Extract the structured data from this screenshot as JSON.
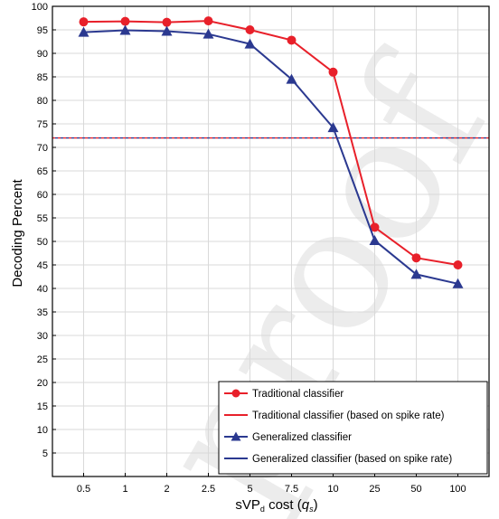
{
  "chart_data": {
    "type": "line",
    "xlabel_parts": {
      "base": "sVP",
      "sub": "d",
      "mid": " cost (",
      "q": "q",
      "qsub": "s",
      "end": ")"
    },
    "ylabel": "Decoding Percent",
    "categories": [
      "0.5",
      "1",
      "2",
      "2.5",
      "5",
      "7.5",
      "10",
      "25",
      "50",
      "100"
    ],
    "ylim": [
      0,
      100
    ],
    "yticks": [
      5,
      10,
      15,
      20,
      25,
      30,
      35,
      40,
      45,
      50,
      55,
      60,
      65,
      70,
      75,
      80,
      85,
      90,
      95,
      100
    ],
    "grid": true,
    "legend_position": "bottom-right",
    "series": [
      {
        "name": "Traditional classifier",
        "marker": "circle",
        "color": "#e8202a",
        "values": [
          96.7,
          96.8,
          96.6,
          96.9,
          95.0,
          92.8,
          86.0,
          53.0,
          46.5,
          45.0
        ]
      },
      {
        "name": "Generalized classifier",
        "marker": "triangle",
        "color": "#2b3990",
        "values": [
          94.5,
          94.9,
          94.7,
          94.1,
          92.0,
          84.5,
          74.2,
          50.2,
          43.0,
          41.0
        ]
      }
    ],
    "reference_lines": [
      {
        "name": "Traditional classifier (based on spike rate)",
        "color": "#e8202a",
        "y": 72.0
      },
      {
        "name": "Generalized classifier (based on spike rate)",
        "color": "#2b3990",
        "y": 72.0
      }
    ],
    "watermark": "proof"
  }
}
